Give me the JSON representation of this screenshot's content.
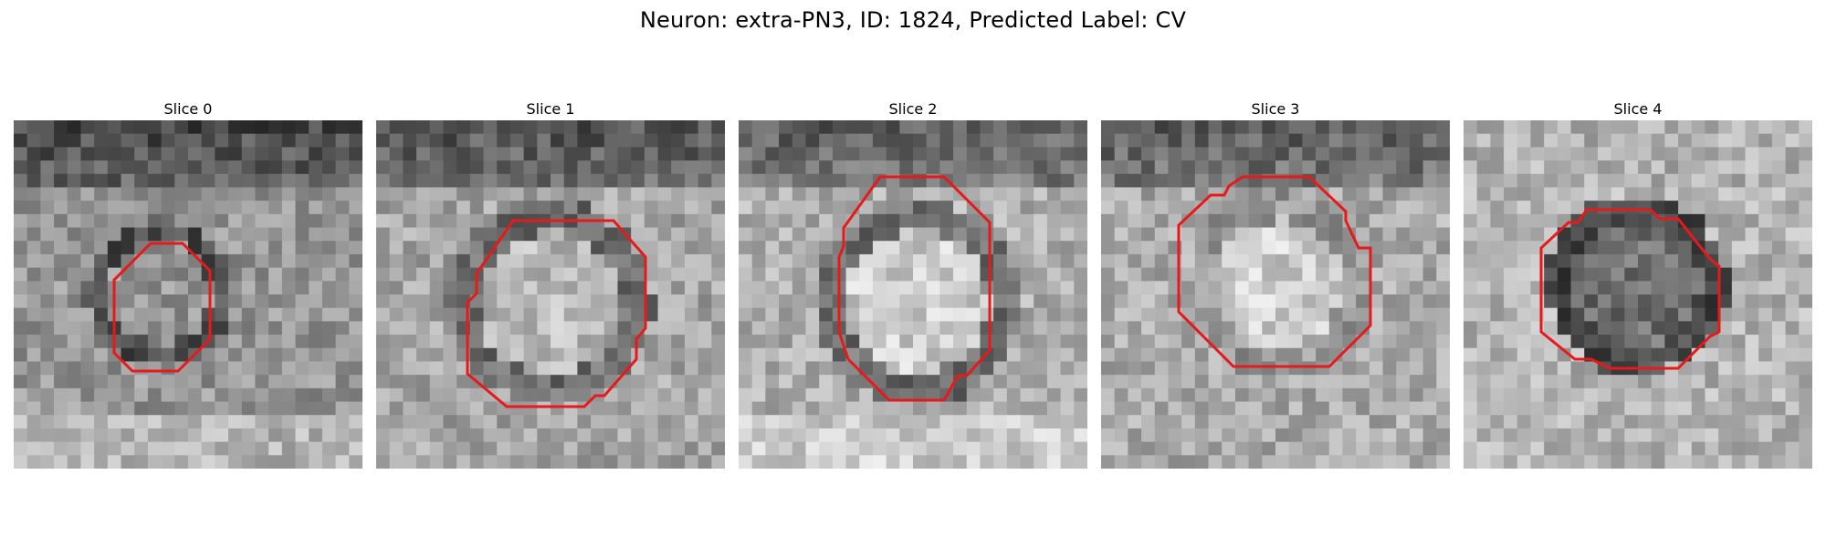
{
  "title": "Neuron: extra-PN3, ID: 1824, Predicted Label: CV",
  "panels": [
    {
      "label": "Slice 0",
      "image": "grayscale-microscopy-slice-with-red-contour"
    },
    {
      "label": "Slice 1",
      "image": "grayscale-microscopy-slice-with-red-contour"
    },
    {
      "label": "Slice 2",
      "image": "grayscale-microscopy-slice-with-red-contour"
    },
    {
      "label": "Slice 3",
      "image": "grayscale-microscopy-slice-with-red-contour"
    },
    {
      "label": "Slice 4",
      "image": "grayscale-microscopy-slice-with-red-contour"
    }
  ],
  "colors": {
    "contour": "#e8191a",
    "background": "#ffffff"
  }
}
